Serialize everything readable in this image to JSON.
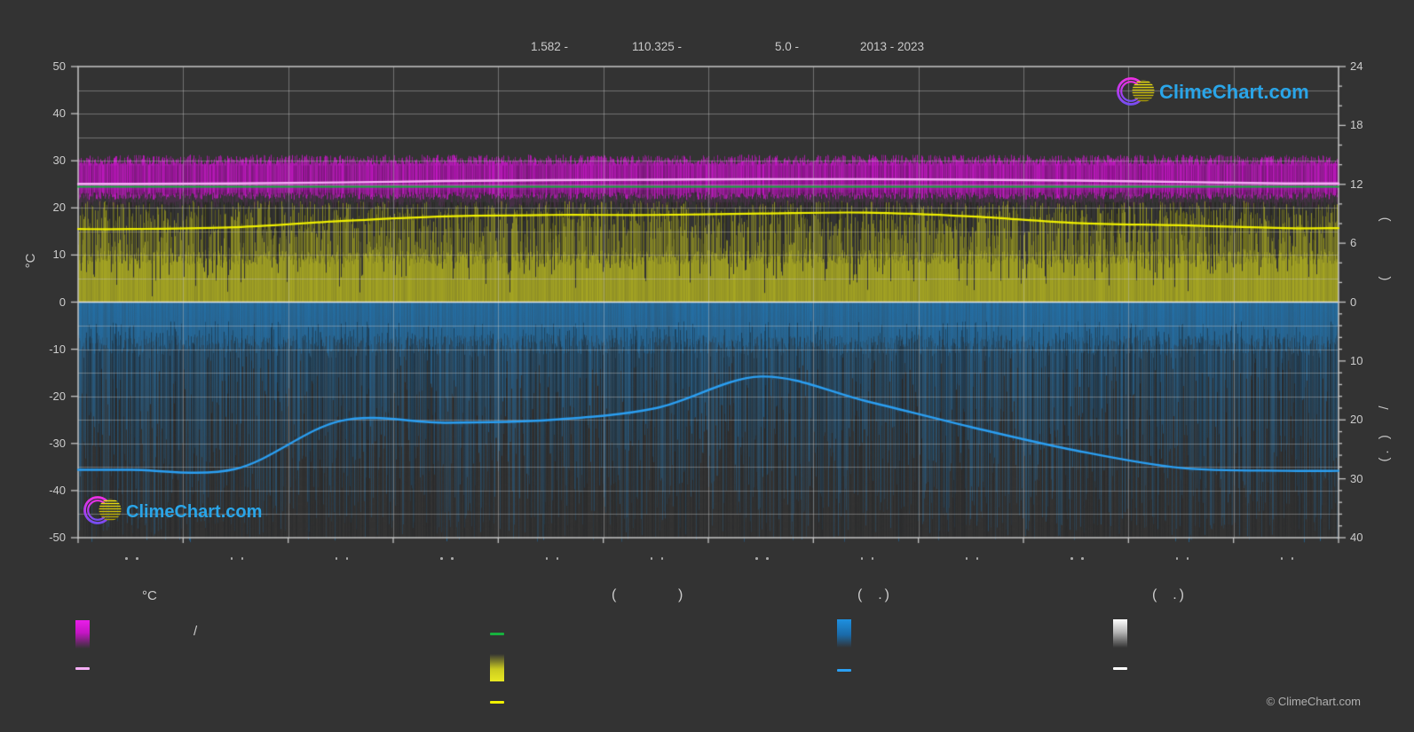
{
  "title": {
    "fragments": [
      "1.582 -",
      "110.325 -",
      "5.0 -",
      "2013 - 2023"
    ]
  },
  "branding": {
    "logo_text": "ClimeChart.com",
    "logo_text_color": "#2aa5e8",
    "copyright": "© ClimeChart.com"
  },
  "axes": {
    "left": {
      "title": "°C",
      "ticks": [
        50,
        40,
        30,
        20,
        10,
        0,
        -10,
        -20,
        -30,
        -40,
        -50
      ]
    },
    "right_upper": {
      "title_fragments": "(    )",
      "ticks": [
        24,
        18,
        12,
        6,
        0
      ]
    },
    "right_lower": {
      "title_fragments": "(. )   /",
      "ticks": [
        10,
        20,
        30,
        40
      ]
    },
    "bottom": {
      "months": 12,
      "tick_label_fragments": ". ."
    }
  },
  "legend": {
    "temperature": {
      "header": "°C",
      "range_separator": "/"
    },
    "sunshine": {
      "header_open": "(",
      "header_close": ")"
    },
    "precipitation": {
      "header": "(  .)"
    },
    "snow": {
      "header": "(  .)"
    }
  },
  "chart_data": {
    "type": "area",
    "subtype": "climate-chart: daily noisy bands + smoothed monthly lines",
    "location": {
      "lat": "1.582",
      "lon": "110.325",
      "elevation": "5.0"
    },
    "period": "2013 - 2023",
    "months_count": 12,
    "left_axis": {
      "label": "°C",
      "min": -50,
      "max": 50,
      "tick_step": 10,
      "grid_step": 5
    },
    "right_axis_upper": {
      "min": 0,
      "max": 24,
      "ticks": [
        24,
        18,
        12,
        6,
        0
      ],
      "minor_step": 2
    },
    "right_axis_lower": {
      "min": 0,
      "max": 40,
      "ticks": [
        10,
        20,
        30,
        40
      ],
      "minor_step": 2,
      "inverted": true
    },
    "grid": true,
    "series": [
      {
        "name": "temperature-daily-minmax-band",
        "type": "noisy-band",
        "color": "#cd16cd",
        "top_c": 30.5,
        "bottom_c": 23.3
      },
      {
        "name": "temperature-mean",
        "type": "line",
        "color": "#f5aef5",
        "unit": "°C",
        "monthly_axis_c": [
          25.1,
          25.2,
          25.4,
          25.7,
          25.9,
          26.0,
          26.1,
          26.1,
          26.0,
          25.8,
          25.5,
          25.2
        ]
      },
      {
        "name": "daylight-duration",
        "type": "line",
        "color": "#17b13e",
        "unit": "hours",
        "monthly_hours": [
          11.8,
          11.8,
          11.8,
          11.8,
          11.8,
          11.8,
          11.8,
          11.8,
          11.8,
          11.8,
          11.8,
          11.8
        ],
        "monthly_axis_c": [
          24.5,
          24.5,
          24.5,
          24.5,
          24.5,
          24.5,
          24.5,
          24.5,
          24.5,
          24.5,
          24.5,
          24.5
        ]
      },
      {
        "name": "sunshine-daily-band",
        "type": "noisy-band",
        "color": "#b2b21e",
        "top_c": 21,
        "bottom_c": 0
      },
      {
        "name": "sunshine-duration",
        "type": "line",
        "color": "#f0f000",
        "unit": "hours",
        "monthly_hours": [
          7.4,
          7.6,
          8.3,
          8.7,
          8.9,
          8.9,
          9.0,
          9.1,
          8.7,
          8.1,
          7.8,
          7.5
        ],
        "monthly_axis_c": [
          15.5,
          15.9,
          17.2,
          18.2,
          18.5,
          18.5,
          18.8,
          19.0,
          18.2,
          16.8,
          16.3,
          15.7
        ]
      },
      {
        "name": "precipitation-daily-band",
        "type": "noisy-band",
        "color": "#2074b2",
        "top_c": 0,
        "bottom_c": -50
      },
      {
        "name": "precipitation",
        "type": "line",
        "color": "#2b9ff2",
        "unit": "mm/day",
        "monthly_mm": [
          28.5,
          28.3,
          20.2,
          20.5,
          20.0,
          18.0,
          12.6,
          16.8,
          21.2,
          25.2,
          28.2,
          28.6
        ],
        "monthly_axis_c": [
          -35.6,
          -35.4,
          -25.2,
          -25.6,
          -25.0,
          -22.5,
          -15.8,
          -21.0,
          -26.5,
          -31.5,
          -35.2,
          -35.8
        ]
      }
    ]
  }
}
